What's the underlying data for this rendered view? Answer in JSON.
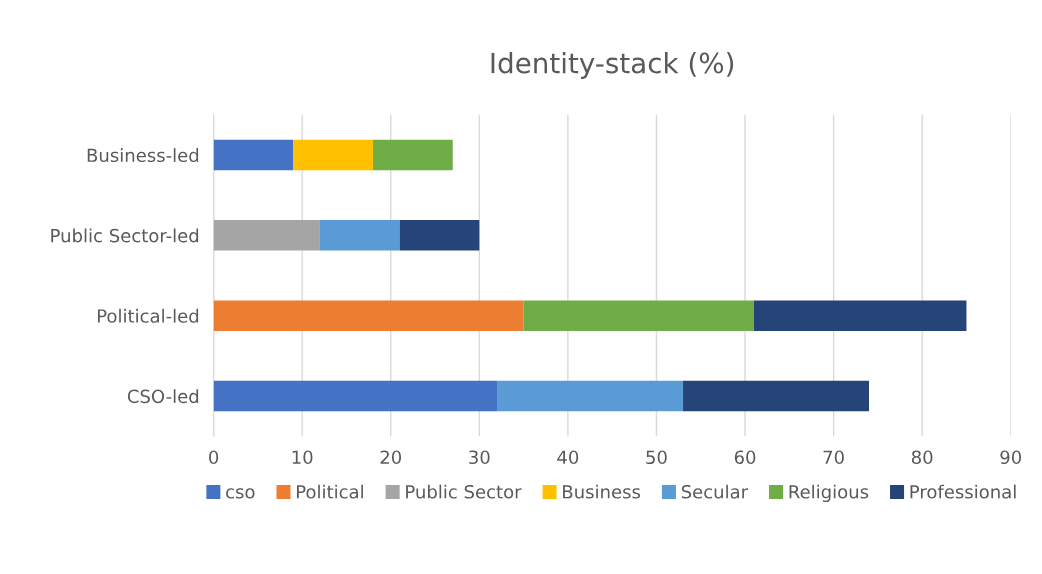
{
  "chart_data": {
    "type": "bar",
    "title": "Identity-stack (%)",
    "orientation": "horizontal",
    "stacked": true,
    "categories": [
      "Business-led",
      "Public Sector-led",
      "Political-led",
      "CSO-led"
    ],
    "series": [
      {
        "name": "cso",
        "color": "#4472c4",
        "values": [
          9,
          null,
          null,
          32
        ]
      },
      {
        "name": "Political",
        "color": "#ed7d31",
        "values": [
          null,
          null,
          35,
          null
        ]
      },
      {
        "name": "Public Sector",
        "color": "#a5a5a5",
        "values": [
          null,
          12,
          null,
          null
        ]
      },
      {
        "name": "Business",
        "color": "#ffc000",
        "values": [
          9,
          null,
          null,
          null
        ]
      },
      {
        "name": "Secular",
        "color": "#5b9bd5",
        "values": [
          null,
          9,
          null,
          21
        ]
      },
      {
        "name": "Religious",
        "color": "#70ad47",
        "values": [
          9,
          null,
          26,
          null
        ]
      },
      {
        "name": "Professional",
        "color": "#264478",
        "values": [
          null,
          9,
          24,
          21
        ]
      }
    ],
    "xlim": [
      0,
      90
    ],
    "xticks": [
      0,
      10,
      20,
      30,
      40,
      50,
      60,
      70,
      80,
      90
    ],
    "grid": "x",
    "legend": "bottom"
  }
}
